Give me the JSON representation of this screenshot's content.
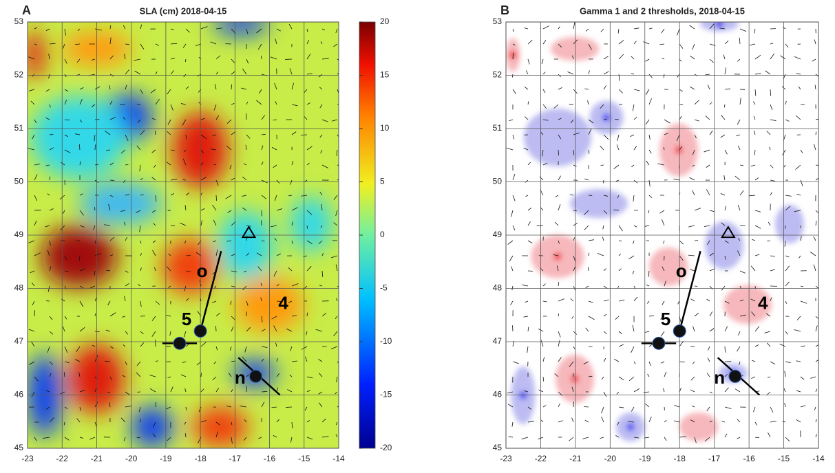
{
  "chart_data": [
    {
      "type": "map",
      "panel": "A",
      "title": "SLA (cm) 2018-04-15",
      "xlim": [
        -23,
        -14
      ],
      "ylim": [
        45,
        53
      ],
      "xticks": [
        -23,
        -22,
        -21,
        -20,
        -19,
        -18,
        -17,
        -16,
        -15,
        -14
      ],
      "yticks": [
        45,
        46,
        47,
        48,
        49,
        50,
        51,
        52,
        53
      ],
      "grid": true,
      "colorbar": {
        "clim": [
          -20,
          20
        ],
        "ticks": [
          -20,
          -15,
          -10,
          -5,
          0,
          5,
          10,
          15,
          20
        ]
      },
      "points": {
        "x": [
          -18.6,
          -18.0,
          -16.4
        ],
        "y": [
          46.97,
          47.2,
          46.35
        ]
      },
      "triangle": {
        "x": -16.6,
        "y": 49.05
      },
      "segments": [
        {
          "x": [
            -18.0,
            -17.4
          ],
          "y": [
            47.2,
            48.7
          ]
        },
        {
          "x": [
            -19.1,
            -18.1
          ],
          "y": [
            46.97,
            46.97
          ]
        },
        {
          "x": [
            -16.9,
            -15.7
          ],
          "y": [
            46.7,
            46.0
          ]
        }
      ],
      "annotations": [
        {
          "text": "o",
          "x": -17.95,
          "y": 48.3
        },
        {
          "text": "5",
          "x": -18.4,
          "y": 47.4
        },
        {
          "text": "4",
          "x": -15.6,
          "y": 47.7
        },
        {
          "text": "n",
          "x": -16.85,
          "y": 46.3
        }
      ]
    },
    {
      "type": "map",
      "panel": "B",
      "title": "Gamma 1 and 2 thresholds, 2018-04-15",
      "xlim": [
        -23,
        -14
      ],
      "ylim": [
        45,
        53
      ],
      "xticks": [
        -23,
        -22,
        -21,
        -20,
        -19,
        -18,
        -17,
        -16,
        -15,
        -14
      ],
      "yticks": [
        45,
        46,
        47,
        48,
        49,
        50,
        51,
        52,
        53
      ],
      "grid": true,
      "points": {
        "x": [
          -18.6,
          -18.0,
          -16.4
        ],
        "y": [
          46.97,
          47.2,
          46.35
        ]
      },
      "triangle": {
        "x": -16.6,
        "y": 49.05
      },
      "segments": [
        {
          "x": [
            -18.0,
            -17.4
          ],
          "y": [
            47.2,
            48.7
          ]
        },
        {
          "x": [
            -19.1,
            -18.1
          ],
          "y": [
            46.97,
            46.97
          ]
        },
        {
          "x": [
            -16.9,
            -15.7
          ],
          "y": [
            46.7,
            46.0
          ]
        }
      ],
      "annotations": [
        {
          "text": "o",
          "x": -17.95,
          "y": 48.3
        },
        {
          "text": "5",
          "x": -18.4,
          "y": 47.4
        },
        {
          "text": "4",
          "x": -15.6,
          "y": 47.7
        },
        {
          "text": "n",
          "x": -16.85,
          "y": 46.3
        }
      ]
    }
  ]
}
